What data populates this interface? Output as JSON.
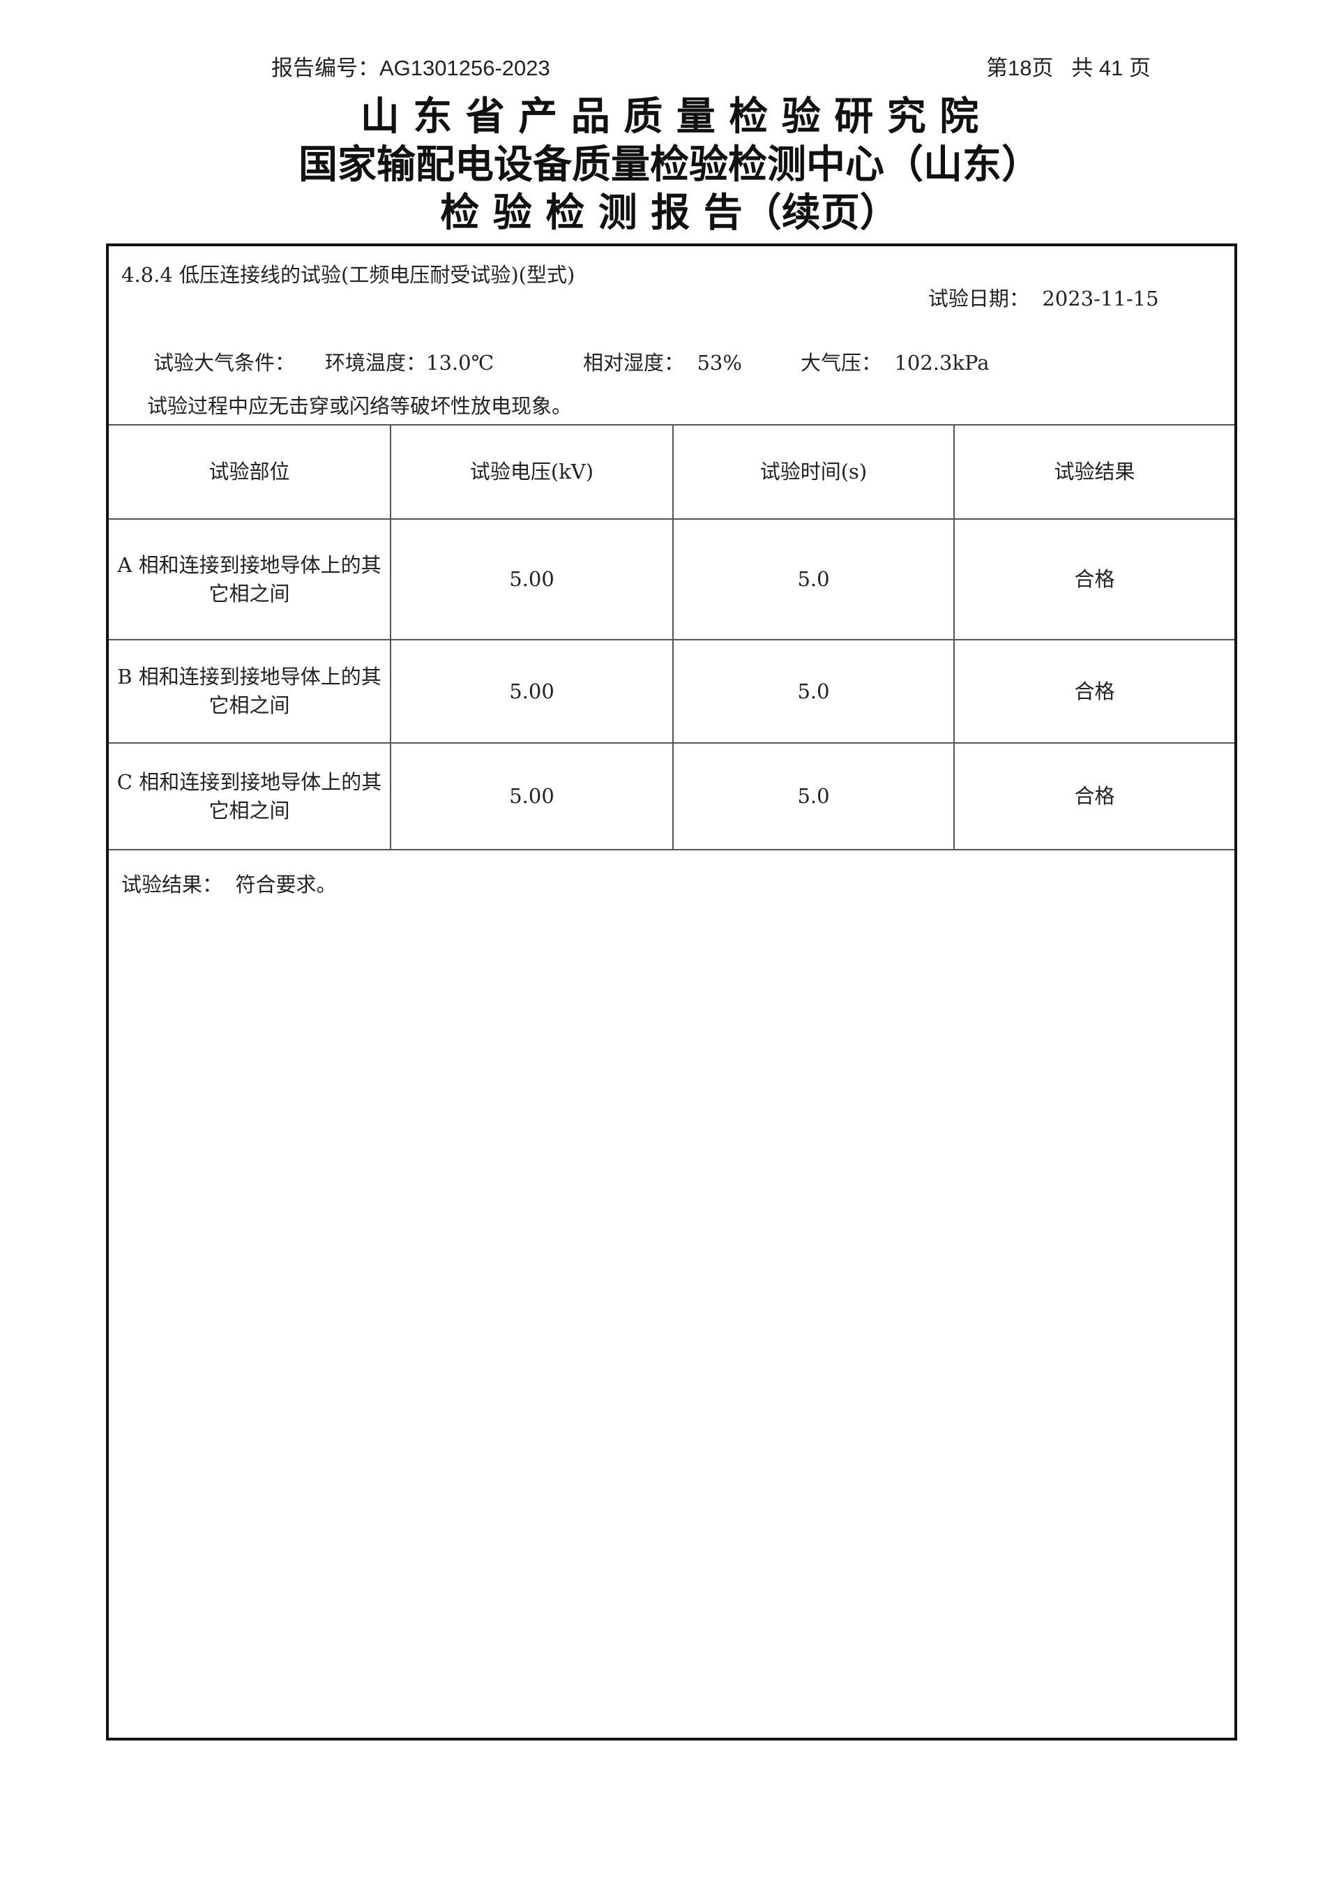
{
  "header": {
    "report_no_label": "报告编号：",
    "report_no": "AG1301256-2023",
    "page_info": "第18页   共 41 页"
  },
  "titles": {
    "line1": "山 东 省 产 品 质 量 检 验 研 究 院",
    "line2": "国家输配电设备质量检验检测中心（山东）",
    "line3": "检 验 检 测 报 告（续页）"
  },
  "section": {
    "heading": "4.8.4 低压连接线的试验(工频电压耐受试验)(型式)",
    "date_label": "试验日期：",
    "date": "2023-11-15",
    "conditions_label": "试验大气条件：",
    "temp_label": "环境温度：",
    "temp": "13.0℃",
    "humidity_label": "相对湿度：",
    "humidity": "53%",
    "pressure_label": "大气压：",
    "pressure": "102.3kPa",
    "requirement": "试验过程中应无击穿或闪络等破坏性放电现象。",
    "result_label": "试验结果：",
    "result": "符合要求。"
  },
  "table": {
    "headers": [
      "试验部位",
      "试验电压(kV)",
      "试验时间(s)",
      "试验结果"
    ],
    "rows": [
      [
        "A 相和连接到接地导体上的其它相之间",
        "5.00",
        "5.0",
        "合格"
      ],
      [
        "B 相和连接到接地导体上的其它相之间",
        "5.00",
        "5.0",
        "合格"
      ],
      [
        "C 相和连接到接地导体上的其它相之间",
        "5.00",
        "5.0",
        "合格"
      ]
    ]
  }
}
